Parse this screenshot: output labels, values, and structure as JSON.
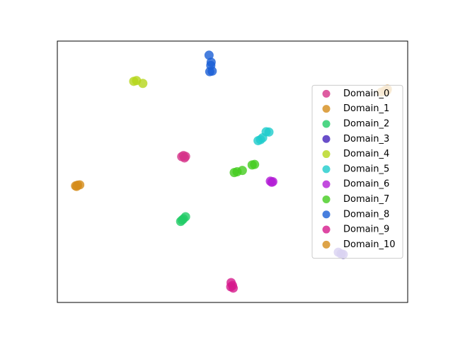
{
  "chart_data": {
    "type": "scatter",
    "xlim": [
      0,
      100
    ],
    "ylim": [
      0,
      100
    ],
    "legend": "center right",
    "series": [
      {
        "name": "Domain_0",
        "color": "#d6338a",
        "x": [
          35.5,
          36.3,
          36.0,
          36.6
        ],
        "y": [
          55.8,
          55.3,
          56.2,
          55.9
        ]
      },
      {
        "name": "Domain_1",
        "color": "#d48c1a",
        "x": [
          5.2,
          5.8,
          6.4,
          5.5
        ],
        "y": [
          44.6,
          44.9,
          45.0,
          44.4
        ]
      },
      {
        "name": "Domain_2",
        "color": "#22cc66",
        "x": [
          35.2,
          36.0,
          36.6,
          35.6
        ],
        "y": [
          31.0,
          32.0,
          32.8,
          31.5
        ]
      },
      {
        "name": "Domain_3",
        "color": "#4422bb",
        "x": [
          80.2,
          81.0,
          81.6
        ],
        "y": [
          19.2,
          18.6,
          18.4
        ]
      },
      {
        "name": "Domain_4",
        "color": "#b5d61a",
        "x": [
          21.8,
          22.6,
          24.4
        ],
        "y": [
          84.6,
          84.9,
          83.8
        ]
      },
      {
        "name": "Domain_5",
        "color": "#1ecccc",
        "x": [
          57.3,
          58.0,
          58.6,
          59.6,
          60.4
        ],
        "y": [
          61.9,
          62.3,
          63.0,
          65.3,
          65.2
        ]
      },
      {
        "name": "Domain_6",
        "color": "#b31ed6",
        "x": [
          60.8,
          61.5,
          61.2
        ],
        "y": [
          46.4,
          46.2,
          46.0
        ]
      },
      {
        "name": "Domain_7",
        "color": "#44cc1e",
        "x": [
          50.5,
          51.3,
          52.8,
          55.6,
          56.3
        ],
        "y": [
          49.7,
          50.0,
          50.5,
          52.6,
          52.8
        ]
      },
      {
        "name": "Domain_8",
        "color": "#1a5fd6",
        "x": [
          43.5,
          44.2,
          43.8,
          43.9,
          43.3
        ],
        "y": [
          88.3,
          88.5,
          90.7,
          91.9,
          94.6
        ]
      },
      {
        "name": "Domain_9",
        "color": "#d61a8c",
        "x": [
          49.5,
          50.0,
          49.6,
          50.2
        ],
        "y": [
          6.0,
          6.5,
          7.6,
          5.5
        ]
      },
      {
        "name": "Domain_10",
        "color": "#d48c1a",
        "x": [
          92.5,
          93.5,
          94.2,
          94.0
        ],
        "y": [
          80.5,
          81.1,
          81.6,
          80.9
        ]
      }
    ]
  }
}
